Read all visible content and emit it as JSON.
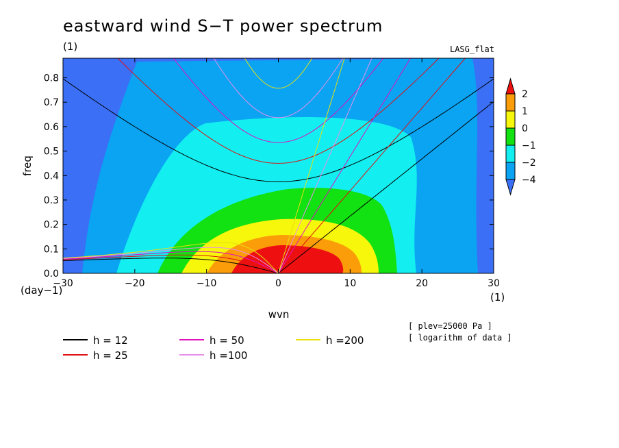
{
  "title": "eastward wind S−T power spectrum",
  "units_left": "(1)",
  "model_label": "LASG_flat",
  "chart_data": {
    "type": "heatmap",
    "title": "eastward wind S−T power spectrum",
    "xlabel": "wvn",
    "ylabel": "freq",
    "x_unit": "(1)",
    "y_unit": "(day−1)",
    "xlim": [
      -30,
      30
    ],
    "ylim": [
      0,
      0.88
    ],
    "xticks": [
      -30,
      -20,
      -10,
      0,
      10,
      20,
      30
    ],
    "yticks": [
      0.0,
      0.1,
      0.2,
      0.3,
      0.4,
      0.5,
      0.6,
      0.7,
      0.8
    ],
    "colorbar": {
      "levels": [
        "−4",
        "−2",
        "−1",
        "0",
        "1",
        "2"
      ],
      "colors": [
        "#3a6ff6",
        "#0aa4f3",
        "#13eef0",
        "#12e112",
        "#f7f70b",
        "#fb9d09",
        "#ee1010"
      ]
    },
    "contour_fill": [
      {
        "level": "−2",
        "color": "#0aa4f3"
      },
      {
        "level": "−1",
        "color": "#13eef0"
      },
      {
        "level": "0",
        "color": "#12e112"
      },
      {
        "level": "1",
        "color": "#f7f70b"
      },
      {
        "level": "2",
        "color": "#fb9d09"
      },
      {
        "level": ">2",
        "color": "#ee1010"
      }
    ],
    "dispersion_curves": [
      {
        "name": "h = 12",
        "color": "#000000"
      },
      {
        "name": "h = 25",
        "color": "#e01010"
      },
      {
        "name": "h = 50",
        "color": "#e010c0"
      },
      {
        "name": "h =100",
        "color": "#e890e8"
      },
      {
        "name": "h =200",
        "color": "#e8e010"
      }
    ],
    "annotations": [
      "[ plev=25000 Pa ]",
      "[ logarithm of data ]"
    ]
  }
}
